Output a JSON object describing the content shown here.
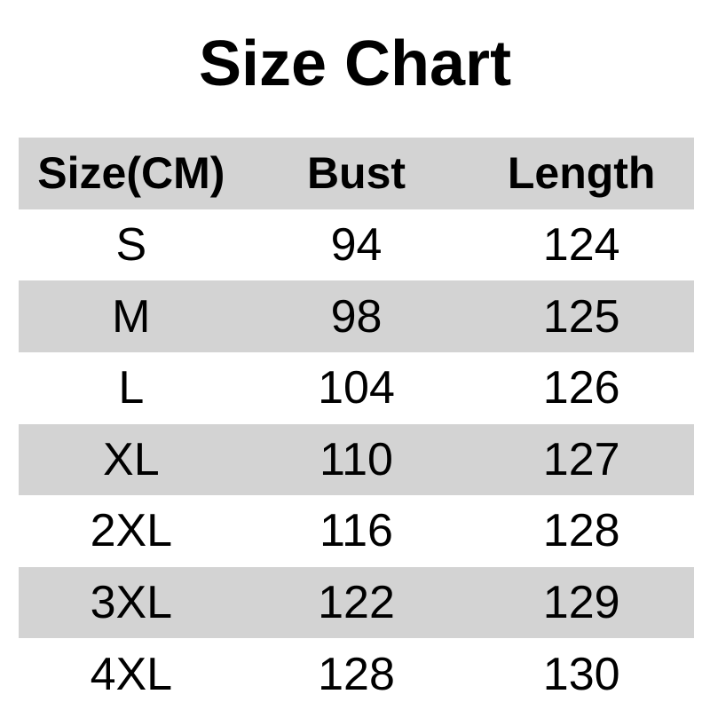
{
  "title": "Size Chart",
  "colors": {
    "stripe_gray": "#d3d3d3",
    "background": "#ffffff",
    "text": "#000000"
  },
  "chart_data": {
    "type": "table",
    "title": "Size Chart",
    "unit": "CM",
    "columns": [
      "Size(CM)",
      "Bust",
      "Length"
    ],
    "rows": [
      [
        "S",
        94,
        124
      ],
      [
        "M",
        98,
        125
      ],
      [
        "L",
        104,
        126
      ],
      [
        "XL",
        110,
        127
      ],
      [
        "2XL",
        116,
        128
      ],
      [
        "3XL",
        122,
        129
      ],
      [
        "4XL",
        128,
        130
      ]
    ]
  }
}
